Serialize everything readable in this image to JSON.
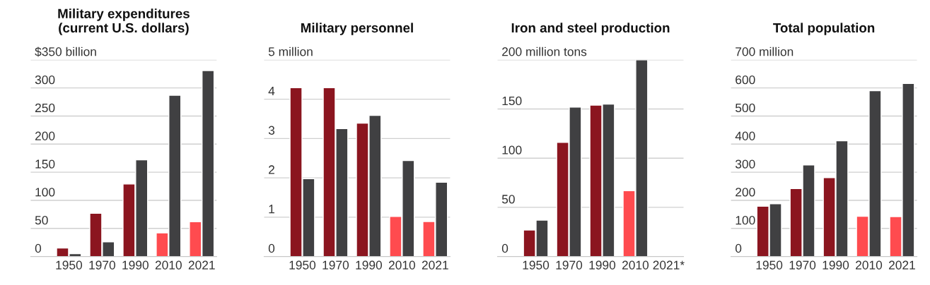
{
  "chart_data": [
    {
      "type": "bar",
      "title": "Military expenditures\n(current U.S. dollars)",
      "categories": [
        "1950",
        "1970",
        "1990",
        "2010",
        "2021"
      ],
      "series": [
        {
          "colors": [
            "#8b151f",
            "#8b151f",
            "#8b151f",
            "#ff4b4f",
            "#ff4b4f"
          ],
          "values": [
            15,
            77,
            129,
            42,
            62
          ]
        },
        {
          "color": "#404042",
          "values": [
            5,
            26,
            172,
            287,
            331
          ]
        }
      ],
      "ylim": [
        0,
        350
      ],
      "yticks": [
        0,
        50,
        100,
        150,
        200,
        250,
        300,
        {
          "value": 350,
          "label": "$350 billion"
        }
      ],
      "grid": "y",
      "legend": false
    },
    {
      "type": "bar",
      "title": "Military personnel",
      "categories": [
        "1950",
        "1970",
        "1990",
        "2010",
        "2021"
      ],
      "series": [
        {
          "colors": [
            "#8b151f",
            "#8b151f",
            "#8b151f",
            "#ff4b4f",
            "#ff4b4f"
          ],
          "values": [
            4.29,
            4.29,
            3.39,
            1.02,
            0.89
          ]
        },
        {
          "color": "#404042",
          "values": [
            1.98,
            3.25,
            3.59,
            2.44,
            1.89
          ]
        }
      ],
      "ylim": [
        0,
        5
      ],
      "yticks": [
        0,
        1,
        2,
        3,
        4,
        {
          "value": 5,
          "label": "5 million"
        }
      ],
      "grid": "y",
      "legend": false
    },
    {
      "type": "bar",
      "title": "Iron and steel production",
      "categories": [
        "1950",
        "1970",
        "1990",
        "2010",
        "2021*"
      ],
      "series": [
        {
          "colors": [
            "#8b151f",
            "#8b151f",
            "#8b151f",
            "#ff4b4f",
            "#ff4b4f"
          ],
          "values": [
            27,
            116,
            154,
            67,
            null
          ]
        },
        {
          "color": "#404042",
          "values": [
            37,
            152,
            155,
            200,
            null
          ]
        }
      ],
      "ylim": [
        0,
        200
      ],
      "yticks": [
        0,
        50,
        100,
        150,
        {
          "value": 200,
          "label": "200 million tons"
        }
      ],
      "grid": "y",
      "legend": false
    },
    {
      "type": "bar",
      "title": "Total population",
      "categories": [
        "1950",
        "1970",
        "1990",
        "2010",
        "2021"
      ],
      "series": [
        {
          "colors": [
            "#8b151f",
            "#8b151f",
            "#8b151f",
            "#ff4b4f",
            "#ff4b4f"
          ],
          "values": [
            179,
            242,
            281,
            143,
            142
          ]
        },
        {
          "color": "#404042",
          "values": [
            188,
            326,
            412,
            590,
            616
          ]
        }
      ],
      "ylim": [
        0,
        700
      ],
      "yticks": [
        0,
        100,
        200,
        300,
        400,
        500,
        600,
        {
          "value": 700,
          "label": "700 million"
        }
      ],
      "grid": "y",
      "legend": false
    }
  ]
}
